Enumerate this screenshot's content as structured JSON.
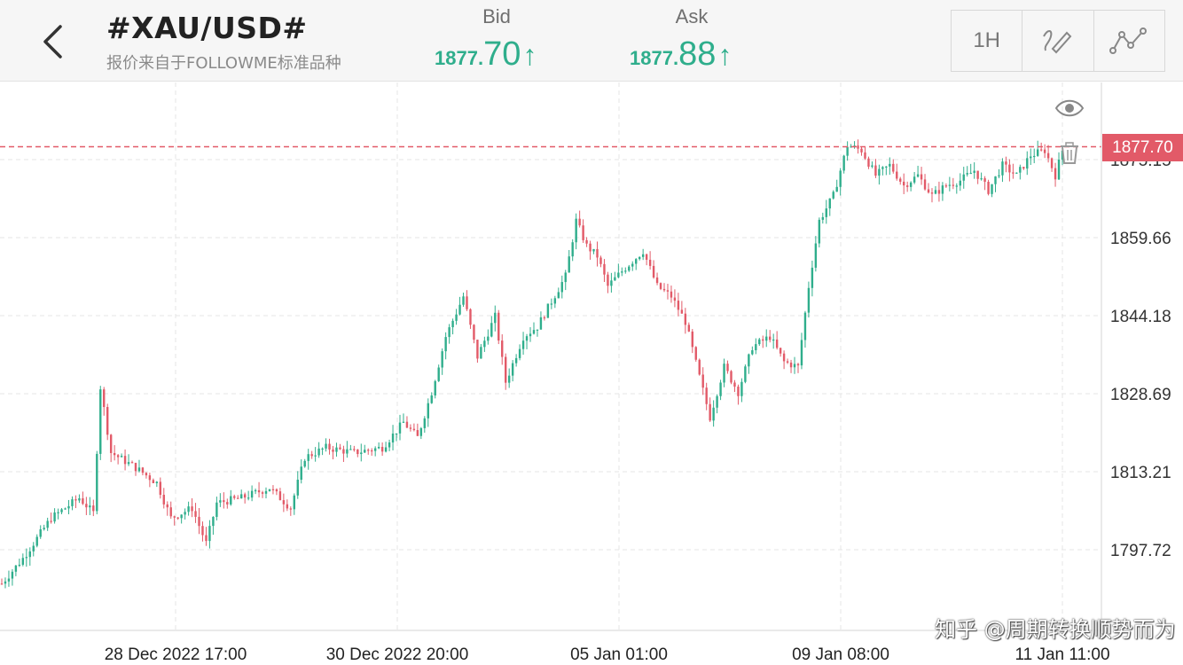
{
  "header": {
    "symbol": "#XAU/USD#",
    "subtitle": "报价来自于FOLLOWME标准品种",
    "bid": {
      "label": "Bid",
      "price_main": "1877.",
      "price_big": "70",
      "arrow": "↑"
    },
    "ask": {
      "label": "Ask",
      "price_main": "1877.",
      "price_big": "88",
      "arrow": "↑"
    },
    "tools": {
      "timeframe": "1H",
      "draw_icon": "pen-draw-icon",
      "indicator_icon": "line-chart-icon"
    },
    "back_icon": "chevron-left-icon"
  },
  "price_line": {
    "value": "1877.70",
    "hidden_label": "1875.15",
    "color": "#e25a68"
  },
  "icons": {
    "eye": "eye-icon",
    "trash": "trash-icon"
  },
  "colors": {
    "up": "#2fae8c",
    "down": "#e25a68",
    "grid": "#e4e4e4"
  },
  "watermark": "知乎 @周期转换顺势而为",
  "chart_data": {
    "type": "candlestick",
    "y_axis_ticks": [
      "1859.66",
      "1844.18",
      "1828.69",
      "1813.21",
      "1797.72"
    ],
    "x_axis_ticks": [
      "28 Dec 2022 17:00",
      "30 Dec 2022 20:00",
      "05 Jan 01:00",
      "09 Jan 08:00",
      "11 Jan 11:00"
    ],
    "ylim": [
      1788,
      1892
    ],
    "grid": true,
    "trend_points": [
      [
        0,
        1791
      ],
      [
        6,
        1796
      ],
      [
        14,
        1804
      ],
      [
        22,
        1808
      ],
      [
        26,
        1805
      ],
      [
        28,
        1830
      ],
      [
        31,
        1817
      ],
      [
        38,
        1814
      ],
      [
        44,
        1811
      ],
      [
        48,
        1804
      ],
      [
        54,
        1806
      ],
      [
        58,
        1799
      ],
      [
        61,
        1807
      ],
      [
        68,
        1808
      ],
      [
        76,
        1810
      ],
      [
        82,
        1806
      ],
      [
        86,
        1816
      ],
      [
        92,
        1818
      ],
      [
        100,
        1817
      ],
      [
        108,
        1818
      ],
      [
        114,
        1823
      ],
      [
        118,
        1820
      ],
      [
        122,
        1829
      ],
      [
        126,
        1840
      ],
      [
        131,
        1848
      ],
      [
        135,
        1836
      ],
      [
        140,
        1844
      ],
      [
        143,
        1831
      ],
      [
        148,
        1840
      ],
      [
        152,
        1842
      ],
      [
        156,
        1847
      ],
      [
        160,
        1852
      ],
      [
        163,
        1863
      ],
      [
        166,
        1858
      ],
      [
        169,
        1856
      ],
      [
        172,
        1850
      ],
      [
        176,
        1853
      ],
      [
        182,
        1857
      ],
      [
        186,
        1850
      ],
      [
        190,
        1848
      ],
      [
        194,
        1843
      ],
      [
        198,
        1832
      ],
      [
        201,
        1824
      ],
      [
        205,
        1834
      ],
      [
        209,
        1829
      ],
      [
        213,
        1838
      ],
      [
        218,
        1840
      ],
      [
        222,
        1835
      ],
      [
        226,
        1834
      ],
      [
        229,
        1850
      ],
      [
        232,
        1863
      ],
      [
        236,
        1868
      ],
      [
        240,
        1878
      ],
      [
        244,
        1877
      ],
      [
        248,
        1872
      ],
      [
        252,
        1874
      ],
      [
        256,
        1870
      ],
      [
        260,
        1872
      ],
      [
        264,
        1868
      ],
      [
        268,
        1870
      ],
      [
        272,
        1871
      ],
      [
        276,
        1873
      ],
      [
        280,
        1869
      ],
      [
        284,
        1874
      ],
      [
        288,
        1872
      ],
      [
        292,
        1876
      ],
      [
        296,
        1877
      ],
      [
        299,
        1872
      ],
      [
        301,
        1877
      ]
    ]
  }
}
